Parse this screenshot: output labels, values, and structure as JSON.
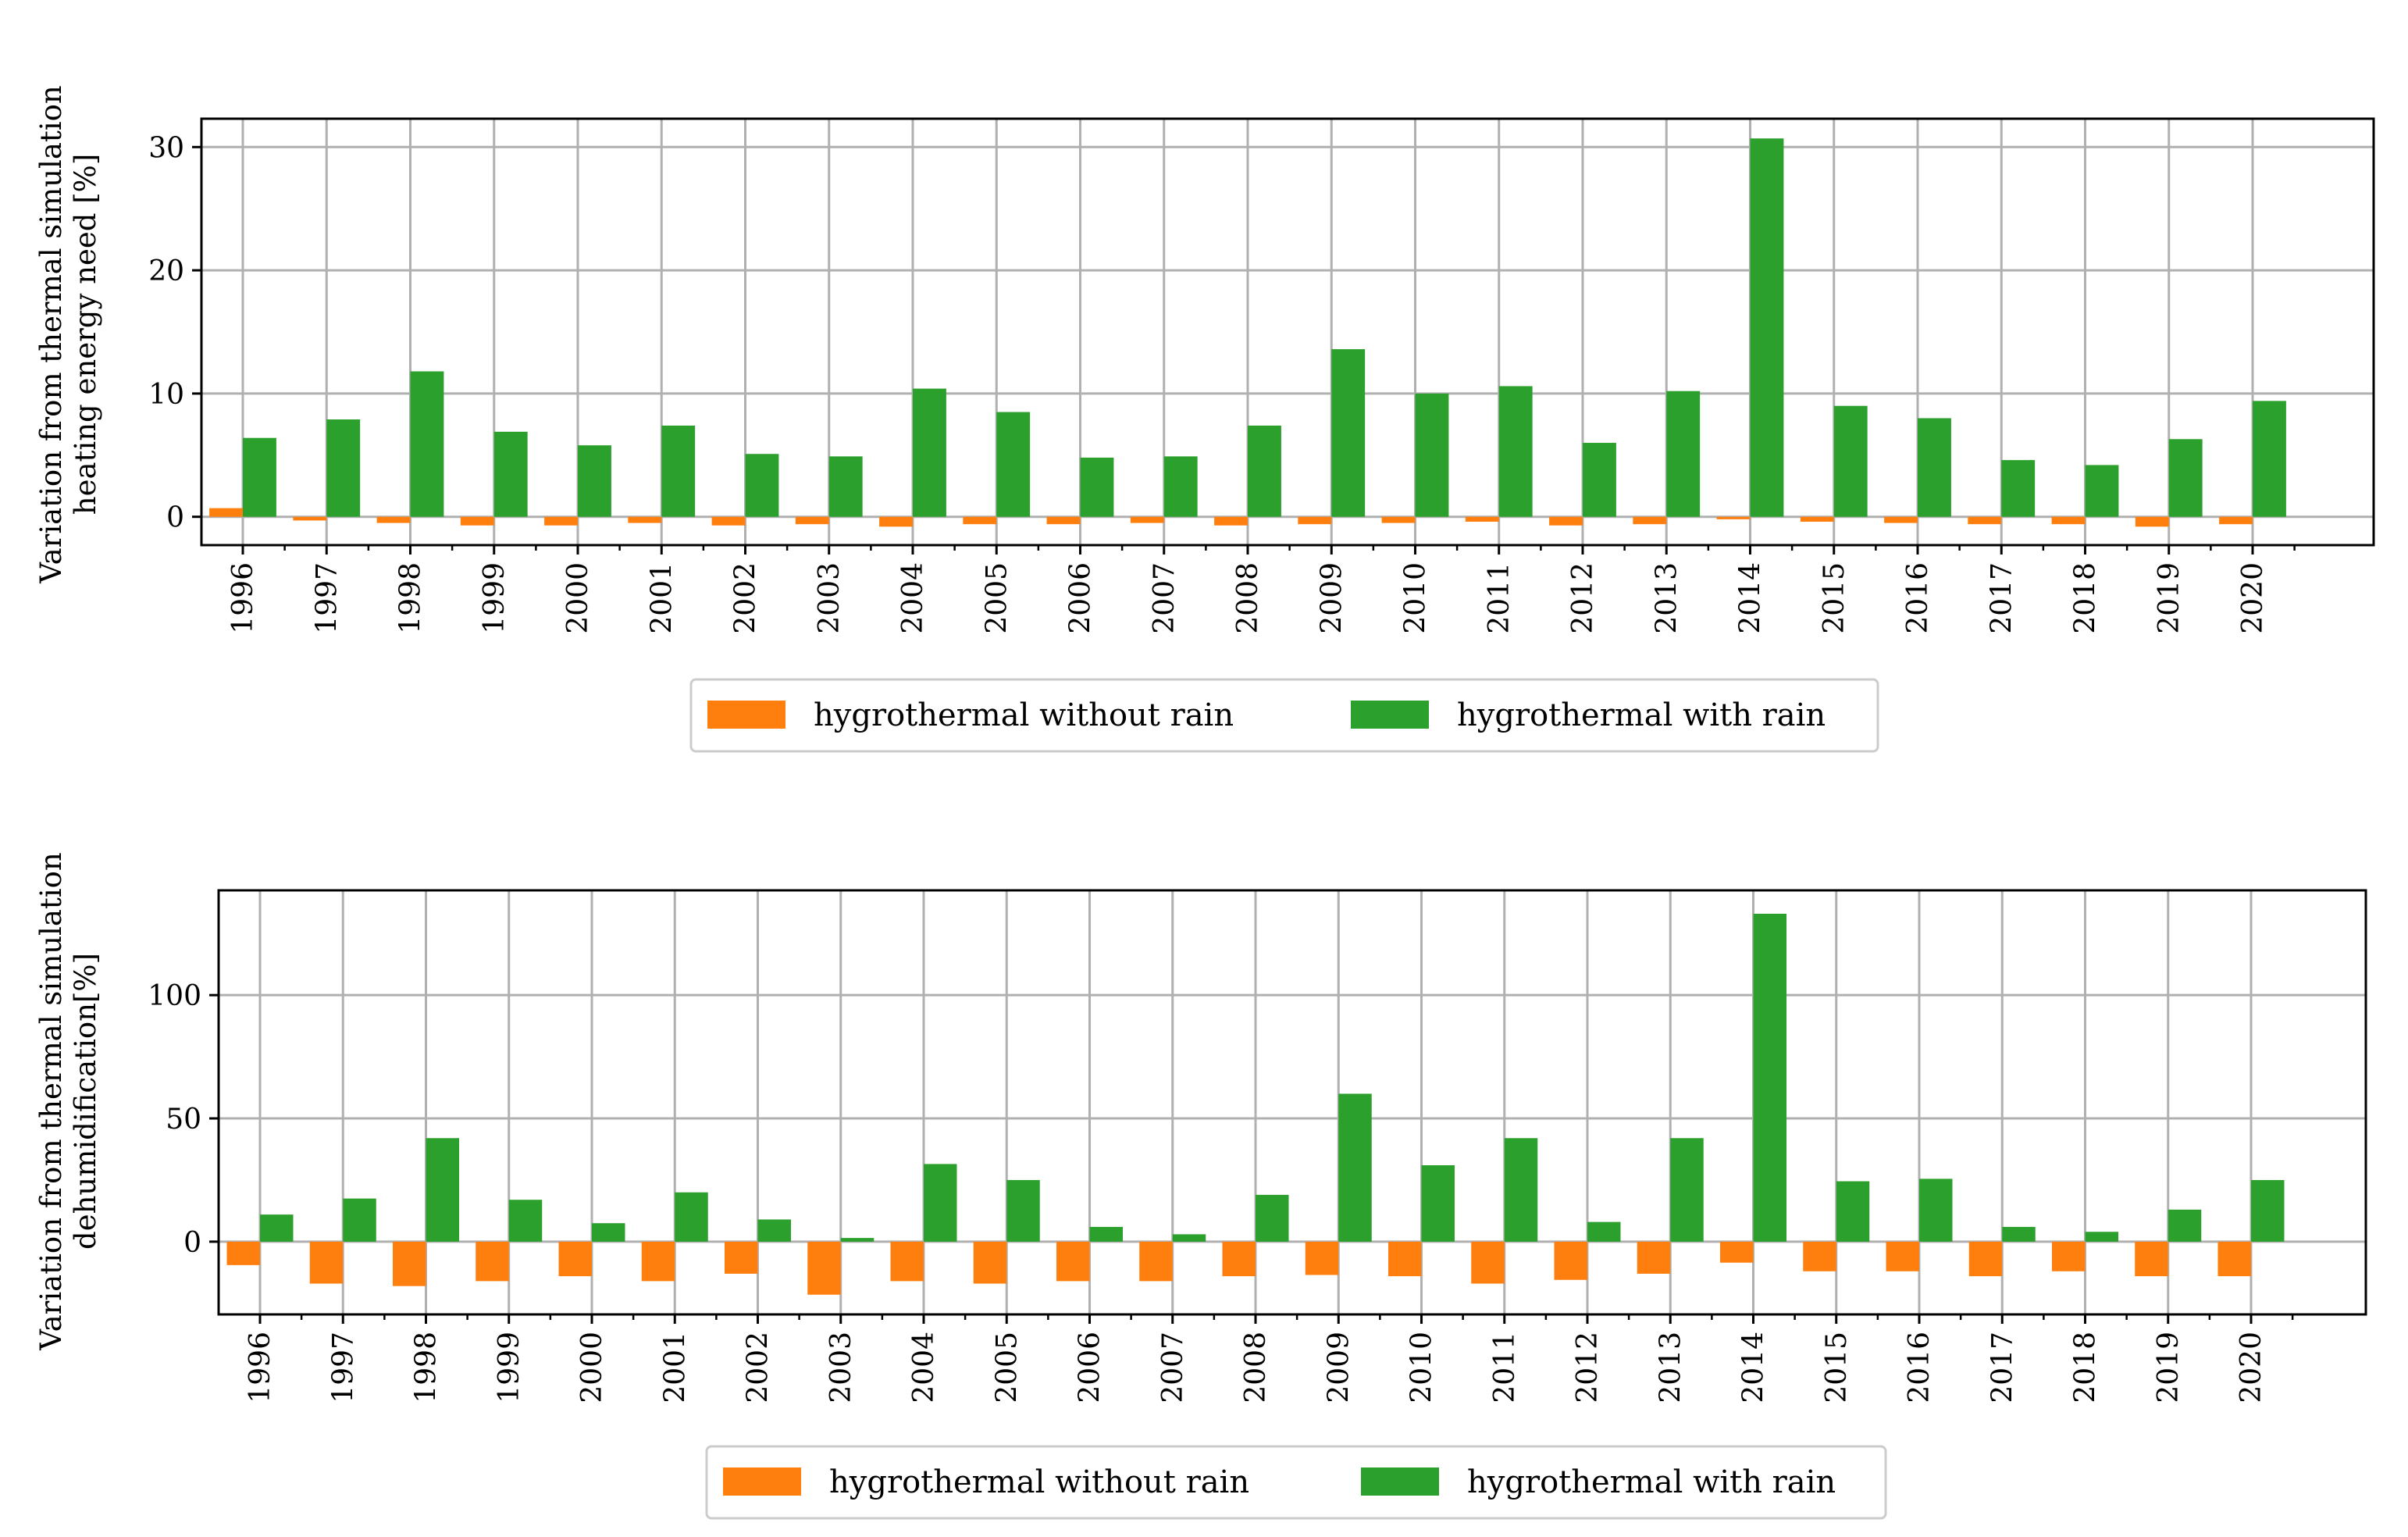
{
  "chart_data": [
    {
      "type": "bar",
      "title": "",
      "xlabel": "",
      "ylabel": [
        "Variation from thermal simulation",
        "heating energy need [%]"
      ],
      "ylim": [
        -2.3,
        32.3
      ],
      "yticks": [
        0,
        10,
        20,
        30
      ],
      "grid": true,
      "legend_position": "bottom-center",
      "categories": [
        "1996",
        "1997",
        "1998",
        "1999",
        "2000",
        "2001",
        "2002",
        "2003",
        "2004",
        "2005",
        "2006",
        "2007",
        "2008",
        "2009",
        "2010",
        "2011",
        "2012",
        "2013",
        "2014",
        "2015",
        "2016",
        "2017",
        "2018",
        "2019",
        "2020"
      ],
      "series": [
        {
          "name": "hygrothermal without rain",
          "color": "#ff7f0e",
          "values": [
            0.7,
            -0.3,
            -0.5,
            -0.7,
            -0.7,
            -0.5,
            -0.7,
            -0.6,
            -0.8,
            -0.6,
            -0.6,
            -0.5,
            -0.7,
            -0.6,
            -0.5,
            -0.4,
            -0.7,
            -0.6,
            -0.2,
            -0.4,
            -0.5,
            -0.6,
            -0.6,
            -0.8,
            -0.6
          ]
        },
        {
          "name": "hygrothermal with rain",
          "color": "#2ca02c",
          "values": [
            6.4,
            7.9,
            11.8,
            6.9,
            5.8,
            7.4,
            5.1,
            4.9,
            10.4,
            8.5,
            4.8,
            4.9,
            7.4,
            13.6,
            10.0,
            10.6,
            6.0,
            10.2,
            30.7,
            9.0,
            8.0,
            4.6,
            4.2,
            6.3,
            9.4
          ]
        }
      ]
    },
    {
      "type": "bar",
      "title": "",
      "xlabel": "",
      "ylabel": [
        "Variation from thermal simulation",
        "dehumidification[%]"
      ],
      "ylim": [
        -29.5,
        142.5
      ],
      "yticks": [
        0,
        50,
        100
      ],
      "grid": true,
      "legend_position": "bottom-center",
      "categories": [
        "1996",
        "1997",
        "1998",
        "1999",
        "2000",
        "2001",
        "2002",
        "2003",
        "2004",
        "2005",
        "2006",
        "2007",
        "2008",
        "2009",
        "2010",
        "2011",
        "2012",
        "2013",
        "2014",
        "2015",
        "2016",
        "2017",
        "2018",
        "2019",
        "2020"
      ],
      "series": [
        {
          "name": "hygrothermal without rain",
          "color": "#ff7f0e",
          "values": [
            -9.5,
            -17,
            -18,
            -16,
            -14,
            -16,
            -13,
            -21.5,
            -16,
            -17,
            -16,
            -16,
            -14,
            -13.5,
            -14,
            -17,
            -15.5,
            -13,
            -8.5,
            -12,
            -12,
            -14,
            -12,
            -14,
            -14
          ]
        },
        {
          "name": "hygrothermal with rain",
          "color": "#2ca02c",
          "values": [
            11,
            17.5,
            42,
            17,
            7.5,
            20,
            9,
            1.5,
            31.5,
            25,
            6,
            3,
            19,
            60,
            31,
            42,
            8,
            42,
            133,
            24.5,
            25.5,
            6,
            4,
            13,
            25
          ]
        }
      ]
    }
  ]
}
